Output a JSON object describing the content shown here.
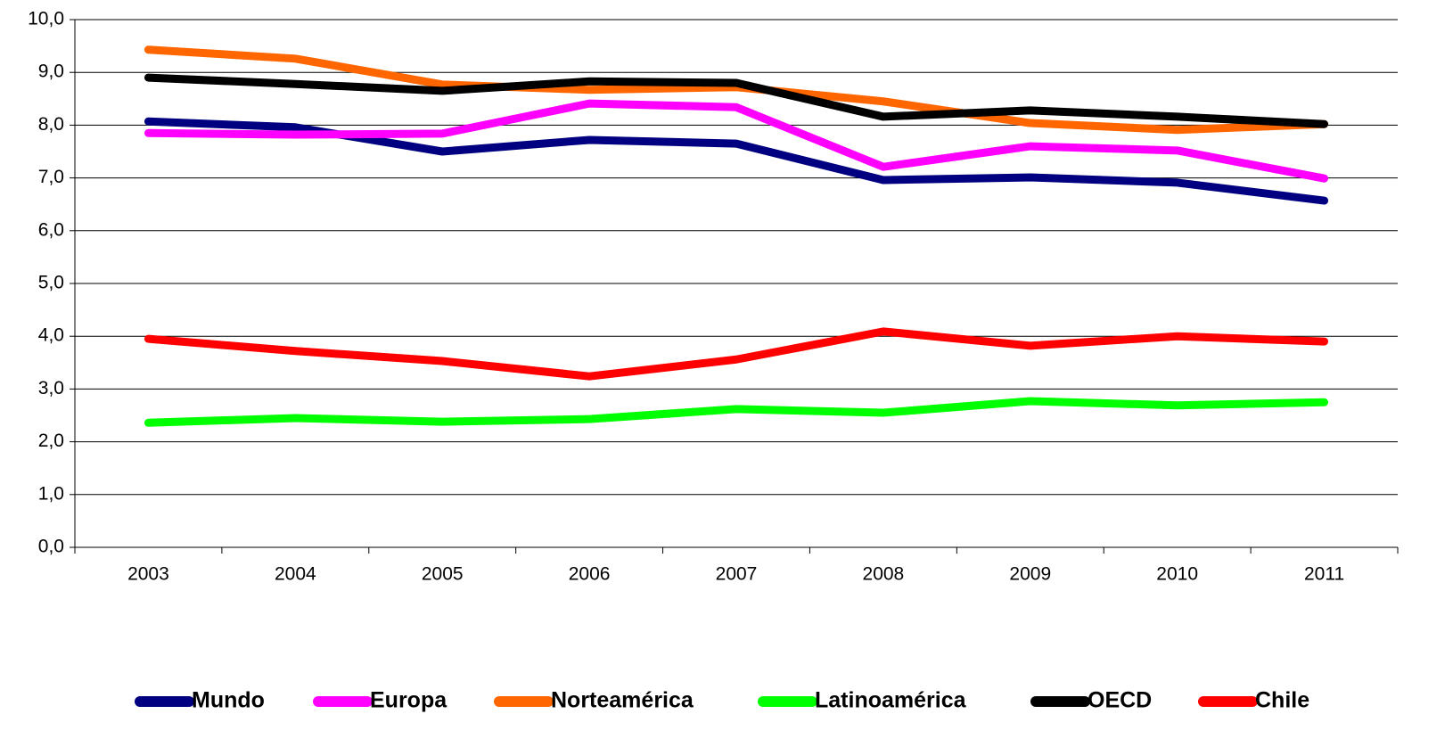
{
  "chart_data": {
    "type": "line",
    "categories": [
      "2003",
      "2004",
      "2005",
      "2006",
      "2007",
      "2008",
      "2009",
      "2010",
      "2011"
    ],
    "series": [
      {
        "name": "Mundo",
        "color": "#000080",
        "values": [
          8.07,
          7.96,
          7.5,
          7.72,
          7.65,
          6.96,
          7.01,
          6.91,
          6.57
        ]
      },
      {
        "name": "Europa",
        "color": "#ff00ff",
        "values": [
          7.85,
          7.82,
          7.84,
          8.41,
          8.34,
          7.21,
          7.6,
          7.52,
          6.99
        ]
      },
      {
        "name": "Norteamérica",
        "color": "#ff6600",
        "values": [
          9.43,
          9.26,
          8.77,
          8.67,
          8.72,
          8.45,
          8.04,
          7.91,
          8.02
        ]
      },
      {
        "name": "Latinoamérica",
        "color": "#00ff00",
        "values": [
          2.36,
          2.45,
          2.38,
          2.43,
          2.62,
          2.55,
          2.77,
          2.69,
          2.75
        ]
      },
      {
        "name": "OECD",
        "color": "#000000",
        "values": [
          8.9,
          8.78,
          8.65,
          8.83,
          8.8,
          8.16,
          8.28,
          8.16,
          8.02
        ]
      },
      {
        "name": "Chile",
        "color": "#ff0000",
        "values": [
          3.95,
          3.72,
          3.53,
          3.24,
          3.56,
          4.09,
          3.82,
          4.0,
          3.9
        ]
      }
    ],
    "ylim": [
      0,
      10
    ],
    "yticks": [
      {
        "value": 0,
        "label": "0,0"
      },
      {
        "value": 1,
        "label": "1,0"
      },
      {
        "value": 2,
        "label": "2,0"
      },
      {
        "value": 3,
        "label": "3,0"
      },
      {
        "value": 4,
        "label": "4,0"
      },
      {
        "value": 5,
        "label": "5,0"
      },
      {
        "value": 6,
        "label": "6,0"
      },
      {
        "value": 7,
        "label": "7,0"
      },
      {
        "value": 8,
        "label": "8,0"
      },
      {
        "value": 9,
        "label": "9,0"
      },
      {
        "value": 10,
        "label": "10,0"
      }
    ],
    "grid": true,
    "legend": "bottom"
  }
}
